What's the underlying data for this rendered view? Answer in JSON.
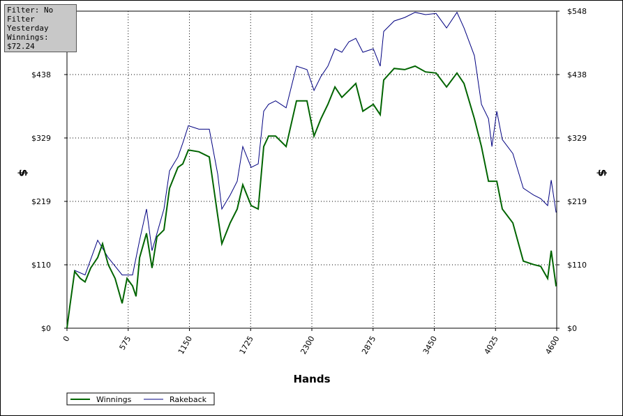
{
  "chart_data": {
    "type": "line",
    "info": [
      "Filter: No Filter",
      "Yesterday",
      "Winnings: $72.24"
    ],
    "xlabel": "Hands",
    "ylabel": "$",
    "xlim": [
      0,
      4600
    ],
    "xticks": [
      0,
      575,
      1150,
      1725,
      2300,
      2875,
      3450,
      4025,
      4600
    ],
    "ylim": [
      0,
      548
    ],
    "yticks": [
      {
        "value": 0,
        "label": "$0"
      },
      {
        "value": 109.6,
        "label": "$110"
      },
      {
        "value": 219.2,
        "label": "$219"
      },
      {
        "value": 328.8,
        "label": "$329"
      },
      {
        "value": 438.4,
        "label": "$438"
      },
      {
        "value": 548,
        "label": "$548"
      }
    ],
    "grid": true,
    "legend": "bottom-left",
    "series": [
      {
        "name": "Rakeback",
        "color": "#000080",
        "x": [
          0,
          72,
          170,
          288,
          387,
          518,
          616,
          682,
          747,
          799,
          911,
          963,
          1042,
          1088,
          1140,
          1239,
          1337,
          1416,
          1455,
          1533,
          1599,
          1651,
          1730,
          1796,
          1848,
          1894,
          1959,
          2058,
          2156,
          2254,
          2320,
          2385,
          2451,
          2517,
          2582,
          2648,
          2713,
          2779,
          2877,
          2942,
          2975,
          3073,
          3172,
          3270,
          3368,
          3467,
          3565,
          3663,
          3729,
          3827,
          3893,
          3959,
          3991,
          4037,
          4089,
          4188,
          4286,
          4384,
          4450,
          4515,
          4548,
          4594
        ],
        "values": [
          0,
          100,
          92,
          152,
          122,
          92,
          92,
          152,
          206,
          134,
          206,
          272,
          296,
          320,
          350,
          344,
          344,
          266,
          206,
          230,
          254,
          314,
          278,
          284,
          375,
          387,
          393,
          381,
          453,
          447,
          411,
          435,
          453,
          483,
          477,
          495,
          501,
          477,
          483,
          453,
          513,
          531,
          537,
          546,
          542,
          544,
          519,
          546,
          519,
          471,
          387,
          362,
          314,
          375,
          326,
          302,
          242,
          230,
          224,
          212,
          256,
          200
        ]
      },
      {
        "name": "Winnings",
        "color": "#006400",
        "x": [
          0,
          26,
          72,
          125,
          170,
          223,
          288,
          334,
          387,
          452,
          518,
          564,
          616,
          649,
          682,
          747,
          799,
          845,
          911,
          963,
          1042,
          1088,
          1140,
          1239,
          1337,
          1416,
          1455,
          1533,
          1599,
          1651,
          1730,
          1796,
          1848,
          1894,
          1959,
          2058,
          2156,
          2254,
          2320,
          2385,
          2451,
          2517,
          2582,
          2648,
          2713,
          2779,
          2877,
          2942,
          2975,
          3073,
          3172,
          3270,
          3368,
          3467,
          3565,
          3663,
          3729,
          3827,
          3893,
          3959,
          4037,
          4089,
          4188,
          4286,
          4384,
          4450,
          4515,
          4548,
          4594
        ],
        "values": [
          0,
          37,
          98,
          86,
          80,
          104,
          122,
          146,
          110,
          86,
          43,
          86,
          73,
          55,
          122,
          164,
          104,
          158,
          170,
          242,
          278,
          284,
          308,
          305,
          296,
          194,
          146,
          182,
          206,
          248,
          212,
          206,
          314,
          332,
          332,
          314,
          393,
          393,
          332,
          362,
          387,
          417,
          399,
          411,
          423,
          375,
          387,
          369,
          429,
          449,
          447,
          453,
          443,
          441,
          417,
          441,
          423,
          362,
          314,
          254,
          254,
          206,
          182,
          116,
          110,
          107,
          86,
          134,
          72.24
        ]
      }
    ]
  }
}
